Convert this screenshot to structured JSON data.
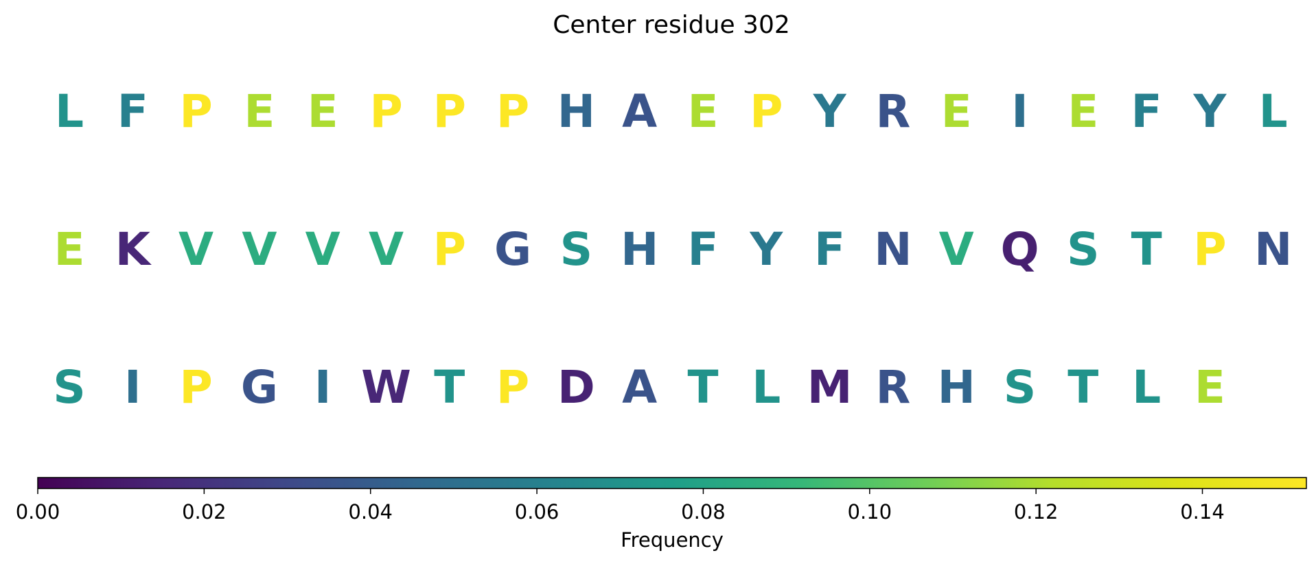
{
  "chart_data": {
    "type": "heatmap",
    "title": "Center residue 302",
    "rows": [
      {
        "letters": [
          "L",
          "F",
          "P",
          "E",
          "E",
          "P",
          "P",
          "P",
          "H",
          "A",
          "E",
          "P",
          "Y",
          "R",
          "E",
          "I",
          "E",
          "F",
          "Y",
          "L"
        ],
        "values": [
          0.07,
          0.06,
          0.152,
          0.12,
          0.12,
          0.152,
          0.152,
          0.152,
          0.045,
          0.035,
          0.12,
          0.152,
          0.055,
          0.035,
          0.12,
          0.05,
          0.12,
          0.06,
          0.055,
          0.07
        ]
      },
      {
        "letters": [
          "E",
          "K",
          "V",
          "V",
          "V",
          "V",
          "P",
          "G",
          "S",
          "H",
          "F",
          "Y",
          "F",
          "N",
          "V",
          "Q",
          "S",
          "T",
          "P",
          "N"
        ],
        "values": [
          0.12,
          0.015,
          0.085,
          0.085,
          0.085,
          0.085,
          0.152,
          0.035,
          0.07,
          0.045,
          0.06,
          0.055,
          0.06,
          0.035,
          0.085,
          0.012,
          0.07,
          0.07,
          0.152,
          0.035
        ]
      },
      {
        "letters": [
          "S",
          "I",
          "P",
          "G",
          "I",
          "W",
          "T",
          "P",
          "D",
          "A",
          "T",
          "L",
          "M",
          "R",
          "H",
          "S",
          "T",
          "L",
          "E"
        ],
        "values": [
          0.07,
          0.05,
          0.152,
          0.035,
          0.05,
          0.015,
          0.07,
          0.152,
          0.013,
          0.035,
          0.07,
          0.07,
          0.013,
          0.035,
          0.045,
          0.07,
          0.07,
          0.07,
          0.12
        ]
      }
    ],
    "colorbar": {
      "label": "Frequency",
      "min": 0.0,
      "max": 0.1525,
      "colormap": "viridis",
      "ticks": [
        0.0,
        0.02,
        0.04,
        0.06,
        0.08,
        0.1,
        0.12,
        0.14
      ],
      "tick_labels": [
        "0.00",
        "0.02",
        "0.04",
        "0.06",
        "0.08",
        "0.10",
        "0.12",
        "0.14"
      ],
      "orientation": "horizontal"
    }
  }
}
